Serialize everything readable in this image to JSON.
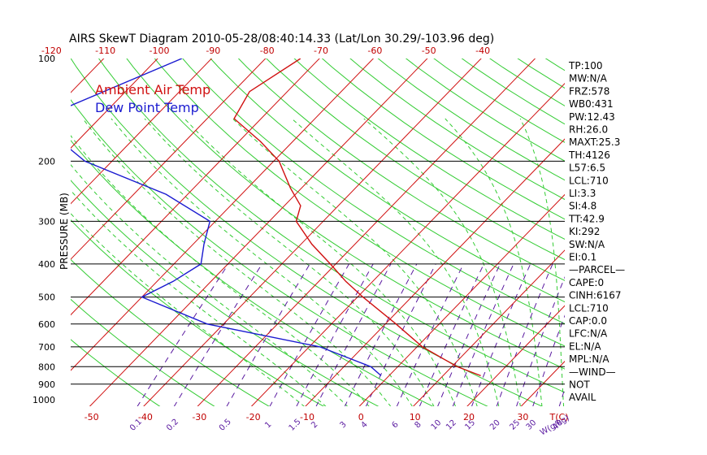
{
  "chart_data": {
    "type": "line",
    "title": "AIRS SkewT Diagram 2010-05-28/08:40:14.33 (Lat/Lon 30.29/-103.96 deg)",
    "ylabel": "PRESSURE (MB)",
    "xlabel": "T(C)",
    "mixing_ratio_unit": "W(g/kg)",
    "top_temperature_ticks": [
      "-120",
      "-110",
      "-100",
      "-90",
      "-80",
      "-70",
      "-60",
      "-50",
      "-40"
    ],
    "bottom_temperature_ticks": [
      "-50",
      "-40",
      "-30",
      "-20",
      "-10",
      "0",
      "10",
      "20",
      "30"
    ],
    "mixing_ratio_ticks": [
      "0.1",
      "0.2",
      "0.5",
      "1",
      "1.5",
      "2",
      "3",
      "4",
      "6",
      "8",
      "10",
      "12",
      "15",
      "20",
      "25",
      "30",
      "40"
    ],
    "pressure_ticks": [
      "100",
      "200",
      "300",
      "400",
      "500",
      "600",
      "700",
      "800",
      "900",
      "1000"
    ],
    "pressure_lines": [
      200,
      300,
      400,
      500,
      600,
      700,
      800,
      900
    ],
    "isotherms_c": [
      -160,
      -150,
      -140,
      -130,
      -120,
      -110,
      -100,
      -90,
      -80,
      -70,
      -60,
      -50,
      -40,
      -30,
      -20,
      -10,
      0,
      10,
      20,
      30,
      40
    ],
    "legend": [
      "Ambient Air Temp",
      "Dew Point Temp"
    ],
    "colors": {
      "ambient": "#d01010",
      "dewpoint": "#1a1ad0",
      "isotherm": "#d01010",
      "adiabat": "#33cc33",
      "mixing_ratio": "#5a1aa0"
    },
    "series": [
      {
        "name": "Ambient Air Temp",
        "points": [
          {
            "p": 100,
            "t": -73.5
          },
          {
            "p": 125,
            "t": -77
          },
          {
            "p": 150,
            "t": -75
          },
          {
            "p": 175,
            "t": -66
          },
          {
            "p": 200,
            "t": -59
          },
          {
            "p": 240,
            "t": -52
          },
          {
            "p": 270,
            "t": -47
          },
          {
            "p": 300,
            "t": -45
          },
          {
            "p": 350,
            "t": -38
          },
          {
            "p": 400,
            "t": -31
          },
          {
            "p": 450,
            "t": -25
          },
          {
            "p": 500,
            "t": -19
          },
          {
            "p": 600,
            "t": -8
          },
          {
            "p": 700,
            "t": 1
          },
          {
            "p": 800,
            "t": 11
          },
          {
            "p": 850,
            "t": 17
          }
        ]
      },
      {
        "name": "Dew Point Temp",
        "points": [
          {
            "p": 100,
            "t": -95.5
          },
          {
            "p": 150,
            "t": -111
          },
          {
            "p": 175,
            "t": -103
          },
          {
            "p": 200,
            "t": -95
          },
          {
            "p": 250,
            "t": -74
          },
          {
            "p": 300,
            "t": -61
          },
          {
            "p": 350,
            "t": -58
          },
          {
            "p": 400,
            "t": -55
          },
          {
            "p": 450,
            "t": -57
          },
          {
            "p": 500,
            "t": -60
          },
          {
            "p": 600,
            "t": -43
          },
          {
            "p": 700,
            "t": -18
          },
          {
            "p": 800,
            "t": -5
          },
          {
            "p": 850,
            "t": -1.5
          }
        ]
      }
    ],
    "grid": true
  },
  "stats": [
    "TP:100",
    "MW:N/A",
    "FRZ:578",
    "WB0:431",
    "PW:12.43",
    "RH:26.0",
    "MAXT:25.3",
    "TH:4126",
    "L57:6.5",
    "LCL:710",
    "LI:3.3",
    "SI:4.8",
    "TT:42.9",
    "KI:292",
    "SW:N/A",
    "EI:0.1",
    "—PARCEL—",
    "CAPE:0",
    "CINH:6167",
    "LCL:710",
    "CAP:0.0",
    "LFC:N/A",
    "EL:N/A",
    "MPL:N/A",
    "—WIND—",
    "NOT",
    "AVAIL"
  ]
}
